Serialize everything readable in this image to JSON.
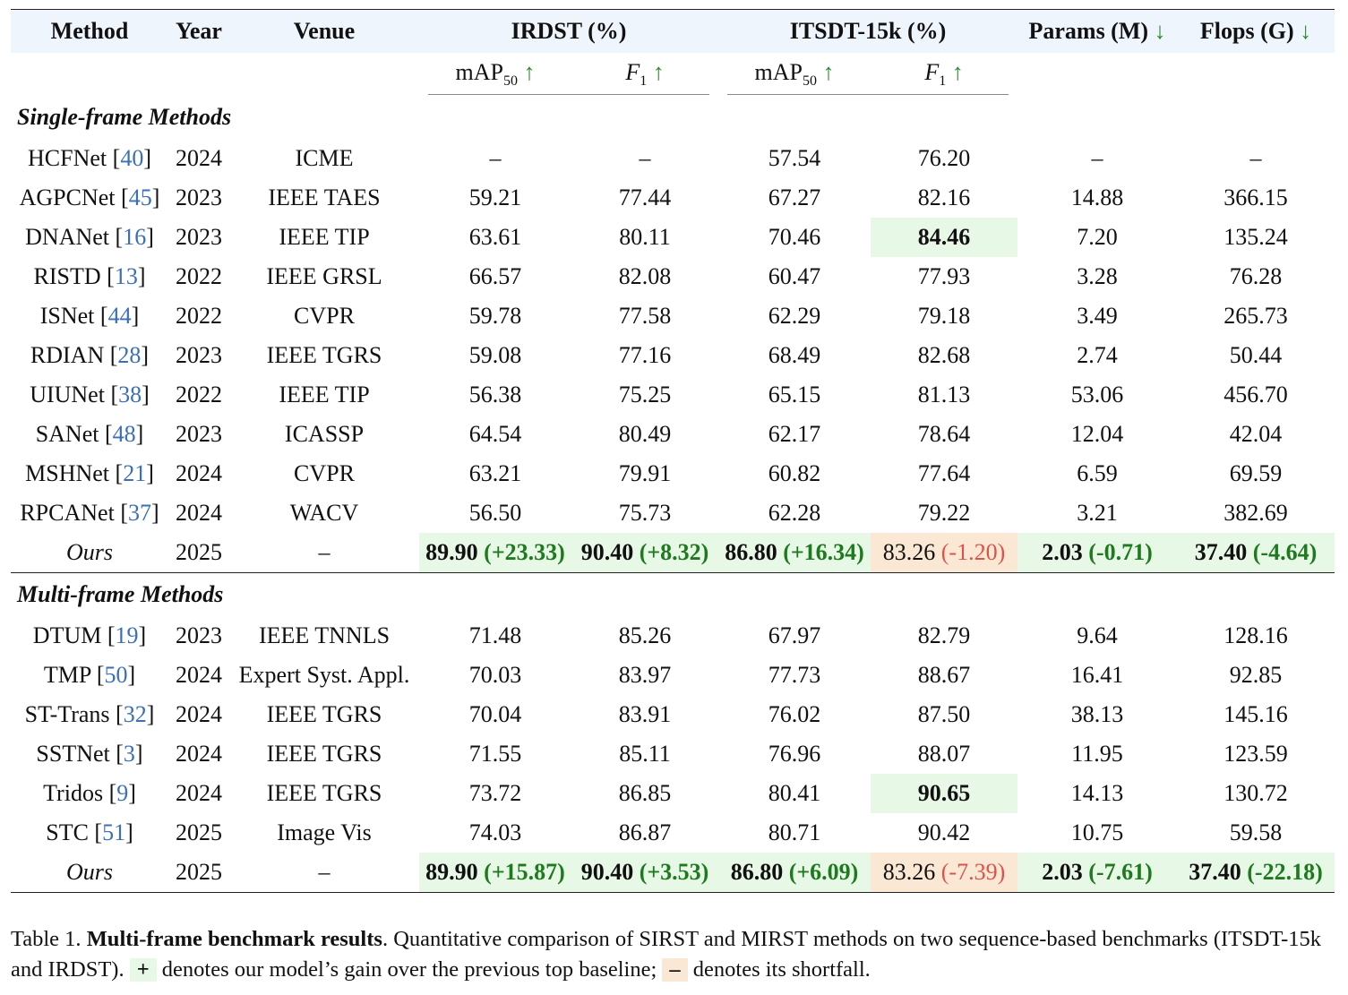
{
  "headers": {
    "method": "Method",
    "year": "Year",
    "venue": "Venue",
    "irdst": "IRDST (%)",
    "itsdt": "ITSDT-15k (%)",
    "params": "Params (M)",
    "flops": "Flops (G)",
    "map_base": "mAP",
    "map_sub": "50",
    "f1_base": "F",
    "f1_sub": "1",
    "up_arrow": "↑",
    "down_arrow": "↓"
  },
  "single_frame": {
    "title": "Single-frame Methods",
    "rows": [
      {
        "name": "HCFNet",
        "ref": "40",
        "year": "2024",
        "venue": "ICME",
        "irdst_map": "–",
        "irdst_f1": "–",
        "itsdt_map": "57.54",
        "itsdt_f1": "76.20",
        "params": "–",
        "flops": "–"
      },
      {
        "name": "AGPCNet",
        "ref": "45",
        "year": "2023",
        "venue": "IEEE TAES",
        "irdst_map": "59.21",
        "irdst_f1": "77.44",
        "itsdt_map": "67.27",
        "itsdt_f1": "82.16",
        "params": "14.88",
        "flops": "366.15"
      },
      {
        "name": "DNANet",
        "ref": "16",
        "year": "2023",
        "venue": "IEEE TIP",
        "irdst_map": "63.61",
        "irdst_f1": "80.11",
        "itsdt_map": "70.46",
        "itsdt_f1": "84.46",
        "params": "7.20",
        "flops": "135.24"
      },
      {
        "name": "RISTD",
        "ref": "13",
        "year": "2022",
        "venue": "IEEE GRSL",
        "irdst_map": "66.57",
        "irdst_f1": "82.08",
        "itsdt_map": "60.47",
        "itsdt_f1": "77.93",
        "params": "3.28",
        "flops": "76.28"
      },
      {
        "name": "ISNet",
        "ref": "44",
        "year": "2022",
        "venue": "CVPR",
        "irdst_map": "59.78",
        "irdst_f1": "77.58",
        "itsdt_map": "62.29",
        "itsdt_f1": "79.18",
        "params": "3.49",
        "flops": "265.73"
      },
      {
        "name": "RDIAN",
        "ref": "28",
        "year": "2023",
        "venue": "IEEE TGRS",
        "irdst_map": "59.08",
        "irdst_f1": "77.16",
        "itsdt_map": "68.49",
        "itsdt_f1": "82.68",
        "params": "2.74",
        "flops": "50.44"
      },
      {
        "name": "UIUNet",
        "ref": "38",
        "year": "2022",
        "venue": "IEEE TIP",
        "irdst_map": "56.38",
        "irdst_f1": "75.25",
        "itsdt_map": "65.15",
        "itsdt_f1": "81.13",
        "params": "53.06",
        "flops": "456.70"
      },
      {
        "name": "SANet",
        "ref": "48",
        "year": "2023",
        "venue": "ICASSP",
        "irdst_map": "64.54",
        "irdst_f1": "80.49",
        "itsdt_map": "62.17",
        "itsdt_f1": "78.64",
        "params": "12.04",
        "flops": "42.04"
      },
      {
        "name": "MSHNet",
        "ref": "21",
        "year": "2024",
        "venue": "CVPR",
        "irdst_map": "63.21",
        "irdst_f1": "79.91",
        "itsdt_map": "60.82",
        "itsdt_f1": "77.64",
        "params": "6.59",
        "flops": "69.59"
      },
      {
        "name": "RPCANet",
        "ref": "37",
        "year": "2024",
        "venue": "WACV",
        "irdst_map": "56.50",
        "irdst_f1": "75.73",
        "itsdt_map": "62.28",
        "itsdt_f1": "79.22",
        "params": "3.21",
        "flops": "382.69"
      }
    ],
    "ours": {
      "name": "Ours",
      "year": "2025",
      "venue": "–",
      "irdst_map": "89.90",
      "irdst_map_delta": "(+23.33)",
      "irdst_f1": "90.40",
      "irdst_f1_delta": "(+8.32)",
      "itsdt_map": "86.80",
      "itsdt_map_delta": "(+16.34)",
      "itsdt_f1": "83.26",
      "itsdt_f1_delta": "(-1.20)",
      "params": "2.03",
      "params_delta": "(-0.71)",
      "flops": "37.40",
      "flops_delta": "(-4.64)"
    }
  },
  "multi_frame": {
    "title": "Multi-frame Methods",
    "rows": [
      {
        "name": "DTUM",
        "ref": "19",
        "year": "2023",
        "venue": "IEEE TNNLS",
        "irdst_map": "71.48",
        "irdst_f1": "85.26",
        "itsdt_map": "67.97",
        "itsdt_f1": "82.79",
        "params": "9.64",
        "flops": "128.16"
      },
      {
        "name": "TMP",
        "ref": "50",
        "year": "2024",
        "venue": "Expert Syst. Appl.",
        "irdst_map": "70.03",
        "irdst_f1": "83.97",
        "itsdt_map": "77.73",
        "itsdt_f1": "88.67",
        "params": "16.41",
        "flops": "92.85"
      },
      {
        "name": "ST-Trans",
        "ref": "32",
        "year": "2024",
        "venue": "IEEE TGRS",
        "irdst_map": "70.04",
        "irdst_f1": "83.91",
        "itsdt_map": "76.02",
        "itsdt_f1": "87.50",
        "params": "38.13",
        "flops": "145.16"
      },
      {
        "name": "SSTNet",
        "ref": "3",
        "year": "2024",
        "venue": "IEEE TGRS",
        "irdst_map": "71.55",
        "irdst_f1": "85.11",
        "itsdt_map": "76.96",
        "itsdt_f1": "88.07",
        "params": "11.95",
        "flops": "123.59"
      },
      {
        "name": "Tridos",
        "ref": "9",
        "year": "2024",
        "venue": "IEEE TGRS",
        "irdst_map": "73.72",
        "irdst_f1": "86.85",
        "itsdt_map": "80.41",
        "itsdt_f1": "90.65",
        "params": "14.13",
        "flops": "130.72"
      },
      {
        "name": "STC",
        "ref": "51",
        "year": "2025",
        "venue": "Image Vis",
        "irdst_map": "74.03",
        "irdst_f1": "86.87",
        "itsdt_map": "80.71",
        "itsdt_f1": "90.42",
        "params": "10.75",
        "flops": "59.58"
      }
    ],
    "ours": {
      "name": "Ours",
      "year": "2025",
      "venue": "–",
      "irdst_map": "89.90",
      "irdst_map_delta": "(+15.87)",
      "irdst_f1": "90.40",
      "irdst_f1_delta": "(+3.53)",
      "itsdt_map": "86.80",
      "itsdt_map_delta": "(+6.09)",
      "itsdt_f1": "83.26",
      "itsdt_f1_delta": "(-7.39)",
      "params": "2.03",
      "params_delta": "(-7.61)",
      "flops": "37.40",
      "flops_delta": "(-22.18)"
    }
  },
  "caption": {
    "label": "Table 1.",
    "bold_title": "Multi-frame benchmark results",
    "text1": ". Quantitative comparison of SIRST and MIRST methods on two sequence-based benchmarks (ITSDT-15k and IRDST).",
    "plus_badge": "+",
    "text2": "denotes our model’s gain over the previous top baseline;",
    "minus_badge": "–",
    "text3": "denotes its shortfall."
  }
}
